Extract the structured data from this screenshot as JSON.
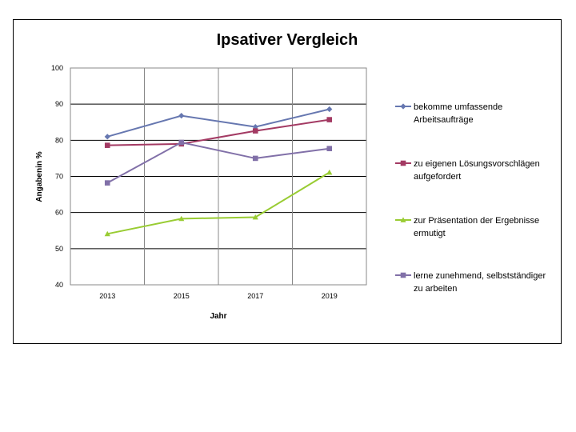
{
  "chart_data": {
    "type": "line",
    "title": "Ipsativer Vergleich",
    "xlabel": "Jahr",
    "ylabel": "Angabenin %",
    "categories": [
      "2013",
      "2015",
      "2017",
      "2019"
    ],
    "ylim": [
      40,
      100
    ],
    "yticks": [
      40,
      50,
      60,
      70,
      80,
      90,
      100
    ],
    "grid": true,
    "legend_position": "right",
    "series": [
      {
        "name_lines": [
          "bekomme umfassende",
          "Arbeitsaufträge"
        ],
        "values": [
          81,
          86.8,
          83.7,
          88.6
        ],
        "color": "#6677B0",
        "marker": "diamond"
      },
      {
        "name_lines": [
          "zu eigenen Lösungsvorschlägen",
          "aufgefordert"
        ],
        "values": [
          78.6,
          79,
          82.6,
          85.7
        ],
        "color": "#A33A63",
        "marker": "square"
      },
      {
        "name_lines": [
          "zur Präsentation der Ergebnisse",
          "ermutigt"
        ],
        "values": [
          54.1,
          58.3,
          58.7,
          71.1
        ],
        "color": "#99CC33",
        "marker": "triangle"
      },
      {
        "name_lines": [
          "lerne zunehmend, selbstständiger",
          "zu arbeiten"
        ],
        "values": [
          68.2,
          79.4,
          75,
          77.7
        ],
        "color": "#8170A8",
        "marker": "square"
      }
    ]
  }
}
